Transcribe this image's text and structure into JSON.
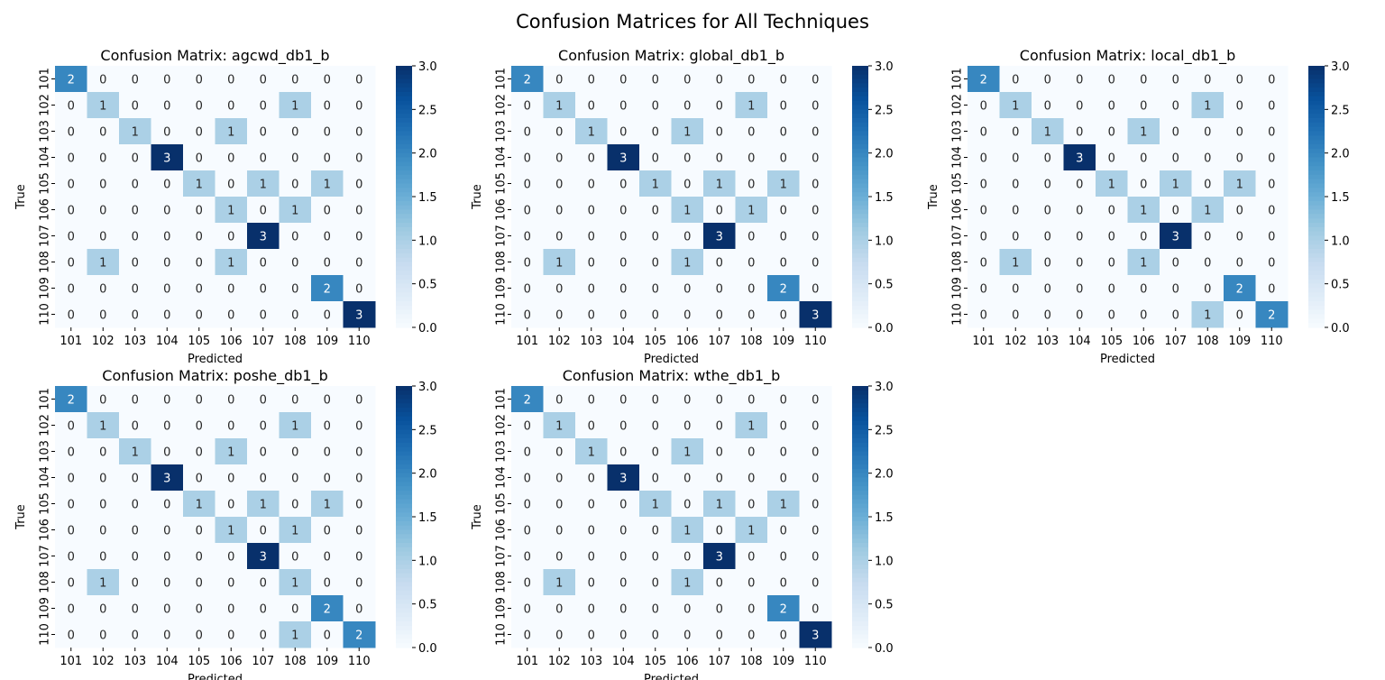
{
  "figure": {
    "title": "Confusion Matrices for All Techniques"
  },
  "chart_data": [
    {
      "type": "heatmap",
      "title": "Confusion Matrix: agcwd_db1_b",
      "xlabel": "Predicted",
      "ylabel": "True",
      "x_categories": [
        "101",
        "102",
        "103",
        "104",
        "105",
        "106",
        "107",
        "108",
        "109",
        "110"
      ],
      "y_categories": [
        "101",
        "102",
        "103",
        "104",
        "105",
        "106",
        "107",
        "108",
        "109",
        "110"
      ],
      "values": [
        [
          2,
          0,
          0,
          0,
          0,
          0,
          0,
          0,
          0,
          0
        ],
        [
          0,
          1,
          0,
          0,
          0,
          0,
          0,
          1,
          0,
          0
        ],
        [
          0,
          0,
          1,
          0,
          0,
          1,
          0,
          0,
          0,
          0
        ],
        [
          0,
          0,
          0,
          3,
          0,
          0,
          0,
          0,
          0,
          0
        ],
        [
          0,
          0,
          0,
          0,
          1,
          0,
          1,
          0,
          1,
          0
        ],
        [
          0,
          0,
          0,
          0,
          0,
          1,
          0,
          1,
          0,
          0
        ],
        [
          0,
          0,
          0,
          0,
          0,
          0,
          3,
          0,
          0,
          0
        ],
        [
          0,
          1,
          0,
          0,
          0,
          1,
          0,
          0,
          0,
          0
        ],
        [
          0,
          0,
          0,
          0,
          0,
          0,
          0,
          0,
          2,
          0
        ],
        [
          0,
          0,
          0,
          0,
          0,
          0,
          0,
          0,
          0,
          3
        ]
      ],
      "colorbar": {
        "range": [
          0,
          3
        ],
        "ticks": [
          "0.0",
          "0.5",
          "1.0",
          "1.5",
          "2.0",
          "2.5",
          "3.0"
        ]
      }
    },
    {
      "type": "heatmap",
      "title": "Confusion Matrix: global_db1_b",
      "xlabel": "Predicted",
      "ylabel": "True",
      "x_categories": [
        "101",
        "102",
        "103",
        "104",
        "105",
        "106",
        "107",
        "108",
        "109",
        "110"
      ],
      "y_categories": [
        "101",
        "102",
        "103",
        "104",
        "105",
        "106",
        "107",
        "108",
        "109",
        "110"
      ],
      "values": [
        [
          2,
          0,
          0,
          0,
          0,
          0,
          0,
          0,
          0,
          0
        ],
        [
          0,
          1,
          0,
          0,
          0,
          0,
          0,
          1,
          0,
          0
        ],
        [
          0,
          0,
          1,
          0,
          0,
          1,
          0,
          0,
          0,
          0
        ],
        [
          0,
          0,
          0,
          3,
          0,
          0,
          0,
          0,
          0,
          0
        ],
        [
          0,
          0,
          0,
          0,
          1,
          0,
          1,
          0,
          1,
          0
        ],
        [
          0,
          0,
          0,
          0,
          0,
          1,
          0,
          1,
          0,
          0
        ],
        [
          0,
          0,
          0,
          0,
          0,
          0,
          3,
          0,
          0,
          0
        ],
        [
          0,
          1,
          0,
          0,
          0,
          1,
          0,
          0,
          0,
          0
        ],
        [
          0,
          0,
          0,
          0,
          0,
          0,
          0,
          0,
          2,
          0
        ],
        [
          0,
          0,
          0,
          0,
          0,
          0,
          0,
          0,
          0,
          3
        ]
      ],
      "colorbar": {
        "range": [
          0,
          3
        ],
        "ticks": [
          "0.0",
          "0.5",
          "1.0",
          "1.5",
          "2.0",
          "2.5",
          "3.0"
        ]
      }
    },
    {
      "type": "heatmap",
      "title": "Confusion Matrix: local_db1_b",
      "xlabel": "Predicted",
      "ylabel": "True",
      "x_categories": [
        "101",
        "102",
        "103",
        "104",
        "105",
        "106",
        "107",
        "108",
        "109",
        "110"
      ],
      "y_categories": [
        "101",
        "102",
        "103",
        "104",
        "105",
        "106",
        "107",
        "108",
        "109",
        "110"
      ],
      "values": [
        [
          2,
          0,
          0,
          0,
          0,
          0,
          0,
          0,
          0,
          0
        ],
        [
          0,
          1,
          0,
          0,
          0,
          0,
          0,
          1,
          0,
          0
        ],
        [
          0,
          0,
          1,
          0,
          0,
          1,
          0,
          0,
          0,
          0
        ],
        [
          0,
          0,
          0,
          3,
          0,
          0,
          0,
          0,
          0,
          0
        ],
        [
          0,
          0,
          0,
          0,
          1,
          0,
          1,
          0,
          1,
          0
        ],
        [
          0,
          0,
          0,
          0,
          0,
          1,
          0,
          1,
          0,
          0
        ],
        [
          0,
          0,
          0,
          0,
          0,
          0,
          3,
          0,
          0,
          0
        ],
        [
          0,
          1,
          0,
          0,
          0,
          1,
          0,
          0,
          0,
          0
        ],
        [
          0,
          0,
          0,
          0,
          0,
          0,
          0,
          0,
          2,
          0
        ],
        [
          0,
          0,
          0,
          0,
          0,
          0,
          0,
          1,
          0,
          2
        ]
      ],
      "colorbar": {
        "range": [
          0,
          3
        ],
        "ticks": [
          "0.0",
          "0.5",
          "1.0",
          "1.5",
          "2.0",
          "2.5",
          "3.0"
        ]
      }
    },
    {
      "type": "heatmap",
      "title": "Confusion Matrix: poshe_db1_b",
      "xlabel": "Predicted",
      "ylabel": "True",
      "x_categories": [
        "101",
        "102",
        "103",
        "104",
        "105",
        "106",
        "107",
        "108",
        "109",
        "110"
      ],
      "y_categories": [
        "101",
        "102",
        "103",
        "104",
        "105",
        "106",
        "107",
        "108",
        "109",
        "110"
      ],
      "values": [
        [
          2,
          0,
          0,
          0,
          0,
          0,
          0,
          0,
          0,
          0
        ],
        [
          0,
          1,
          0,
          0,
          0,
          0,
          0,
          1,
          0,
          0
        ],
        [
          0,
          0,
          1,
          0,
          0,
          1,
          0,
          0,
          0,
          0
        ],
        [
          0,
          0,
          0,
          3,
          0,
          0,
          0,
          0,
          0,
          0
        ],
        [
          0,
          0,
          0,
          0,
          1,
          0,
          1,
          0,
          1,
          0
        ],
        [
          0,
          0,
          0,
          0,
          0,
          1,
          0,
          1,
          0,
          0
        ],
        [
          0,
          0,
          0,
          0,
          0,
          0,
          3,
          0,
          0,
          0
        ],
        [
          0,
          1,
          0,
          0,
          0,
          0,
          0,
          1,
          0,
          0
        ],
        [
          0,
          0,
          0,
          0,
          0,
          0,
          0,
          0,
          2,
          0
        ],
        [
          0,
          0,
          0,
          0,
          0,
          0,
          0,
          1,
          0,
          2
        ]
      ],
      "colorbar": {
        "range": [
          0,
          3
        ],
        "ticks": [
          "0.0",
          "0.5",
          "1.0",
          "1.5",
          "2.0",
          "2.5",
          "3.0"
        ]
      }
    },
    {
      "type": "heatmap",
      "title": "Confusion Matrix: wthe_db1_b",
      "xlabel": "Predicted",
      "ylabel": "True",
      "x_categories": [
        "101",
        "102",
        "103",
        "104",
        "105",
        "106",
        "107",
        "108",
        "109",
        "110"
      ],
      "y_categories": [
        "101",
        "102",
        "103",
        "104",
        "105",
        "106",
        "107",
        "108",
        "109",
        "110"
      ],
      "values": [
        [
          2,
          0,
          0,
          0,
          0,
          0,
          0,
          0,
          0,
          0
        ],
        [
          0,
          1,
          0,
          0,
          0,
          0,
          0,
          1,
          0,
          0
        ],
        [
          0,
          0,
          1,
          0,
          0,
          1,
          0,
          0,
          0,
          0
        ],
        [
          0,
          0,
          0,
          3,
          0,
          0,
          0,
          0,
          0,
          0
        ],
        [
          0,
          0,
          0,
          0,
          1,
          0,
          1,
          0,
          1,
          0
        ],
        [
          0,
          0,
          0,
          0,
          0,
          1,
          0,
          1,
          0,
          0
        ],
        [
          0,
          0,
          0,
          0,
          0,
          0,
          3,
          0,
          0,
          0
        ],
        [
          0,
          1,
          0,
          0,
          0,
          1,
          0,
          0,
          0,
          0
        ],
        [
          0,
          0,
          0,
          0,
          0,
          0,
          0,
          0,
          2,
          0
        ],
        [
          0,
          0,
          0,
          0,
          0,
          0,
          0,
          0,
          0,
          3
        ]
      ],
      "colorbar": {
        "range": [
          0,
          3
        ],
        "ticks": [
          "0.0",
          "0.5",
          "1.0",
          "1.5",
          "2.0",
          "2.5",
          "3.0"
        ]
      }
    }
  ],
  "colors": {
    "colormap": "Blues",
    "stops": [
      "#f7fbff",
      "#deebf7",
      "#c6dbef",
      "#9ecae1",
      "#6baed6",
      "#4292c6",
      "#2171b5",
      "#08519c",
      "#08306b"
    ]
  }
}
